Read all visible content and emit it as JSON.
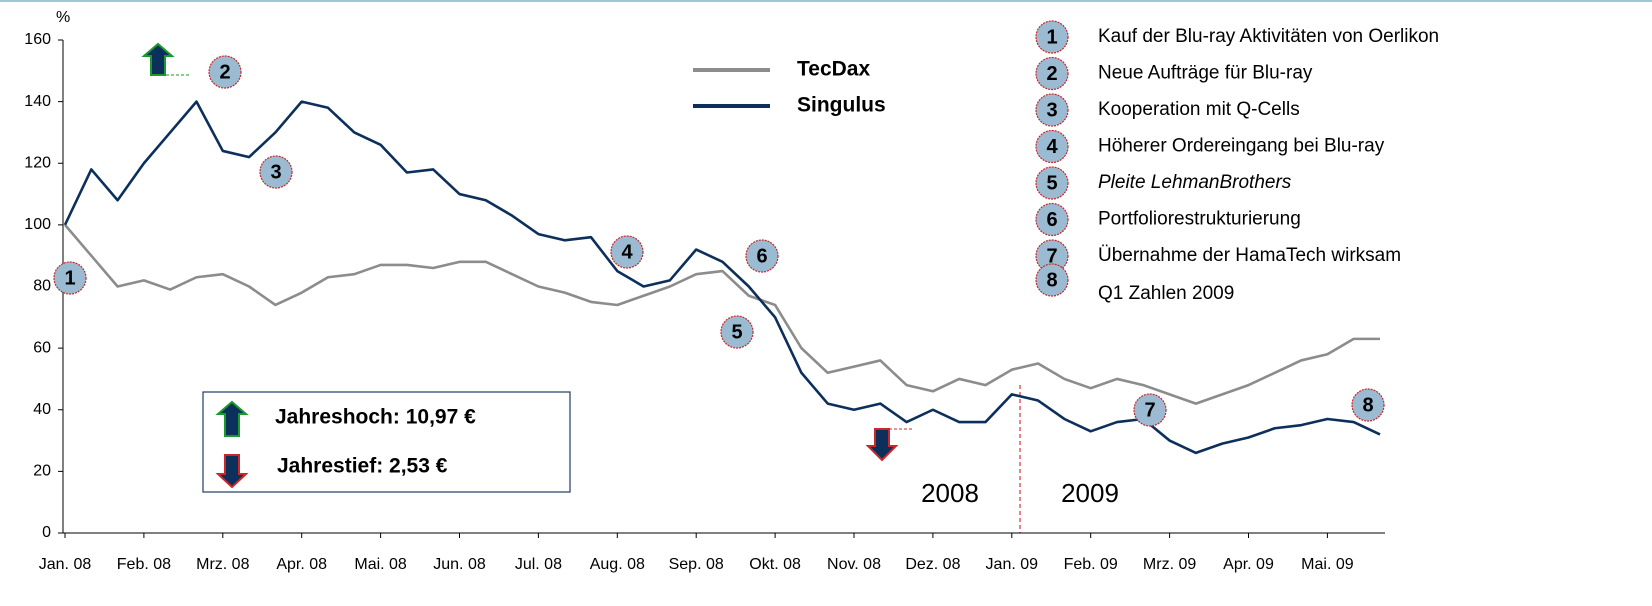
{
  "chart_data": {
    "type": "line",
    "y_label": "%",
    "ylim": [
      0,
      160
    ],
    "yticks": [
      0,
      20,
      40,
      60,
      80,
      100,
      120,
      140,
      160
    ],
    "categories": [
      "Jan. 08",
      null,
      null,
      "Feb. 08",
      null,
      null,
      "Mrz. 08",
      null,
      null,
      "Apr. 08",
      null,
      null,
      "Mai. 08",
      null,
      null,
      "Jun. 08",
      null,
      null,
      "Jul. 08",
      null,
      null,
      "Aug. 08",
      null,
      null,
      "Sep. 08",
      null,
      null,
      "Okt. 08",
      null,
      null,
      "Nov. 08",
      null,
      null,
      "Dez. 08",
      null,
      null,
      "Jan. 09",
      null,
      null,
      "Feb. 09",
      null,
      null,
      "Mrz. 09",
      null,
      null,
      "Apr. 09",
      null,
      null,
      "Mai. 09",
      null,
      null
    ],
    "series": [
      {
        "name": "TecDax",
        "color": "#8c8c8c",
        "values": [
          100,
          90,
          80,
          82,
          79,
          83,
          84,
          80,
          74,
          78,
          83,
          84,
          87,
          87,
          86,
          88,
          88,
          84,
          80,
          78,
          75,
          74,
          77,
          80,
          84,
          85,
          77,
          74,
          60,
          52,
          54,
          56,
          48,
          46,
          50,
          48,
          53,
          55,
          50,
          47,
          50,
          48,
          45,
          42,
          45,
          48,
          52,
          56,
          58,
          63,
          63
        ]
      },
      {
        "name": "Singulus",
        "color": "#0c2f5c",
        "values": [
          100,
          118,
          108,
          120,
          130,
          140,
          124,
          122,
          130,
          140,
          138,
          130,
          126,
          117,
          118,
          110,
          108,
          103,
          97,
          95,
          96,
          85,
          80,
          82,
          92,
          88,
          80,
          70,
          52,
          42,
          40,
          42,
          36,
          40,
          36,
          36,
          45,
          43,
          37,
          33,
          36,
          37,
          30,
          26,
          29,
          31,
          34,
          35,
          37,
          36,
          32
        ]
      }
    ],
    "events": [
      {
        "number": "1",
        "text": "Kauf der Blu-ray Aktivitäten von Oerlikon"
      },
      {
        "number": "2",
        "text": "Neue Aufträge für Blu-ray"
      },
      {
        "number": "3",
        "text": "Kooperation mit Q-Cells"
      },
      {
        "number": "4",
        "text": "Höherer Ordereingang bei Blu-ray"
      },
      {
        "number": "5",
        "text": "Pleite LehmanBrothers"
      },
      {
        "number": "6",
        "text": "Portfoliorestrukturierung"
      },
      {
        "number": "7",
        "text": "Übernahme der HamaTech wirksam"
      },
      {
        "number": "8",
        "text": "Q1 Zahlen 2009"
      }
    ],
    "high_label": "Jahreshoch: 10,97 €",
    "low_label": "Jahrestief: 2,53 €",
    "year_labels": [
      "2008",
      "2009"
    ]
  }
}
